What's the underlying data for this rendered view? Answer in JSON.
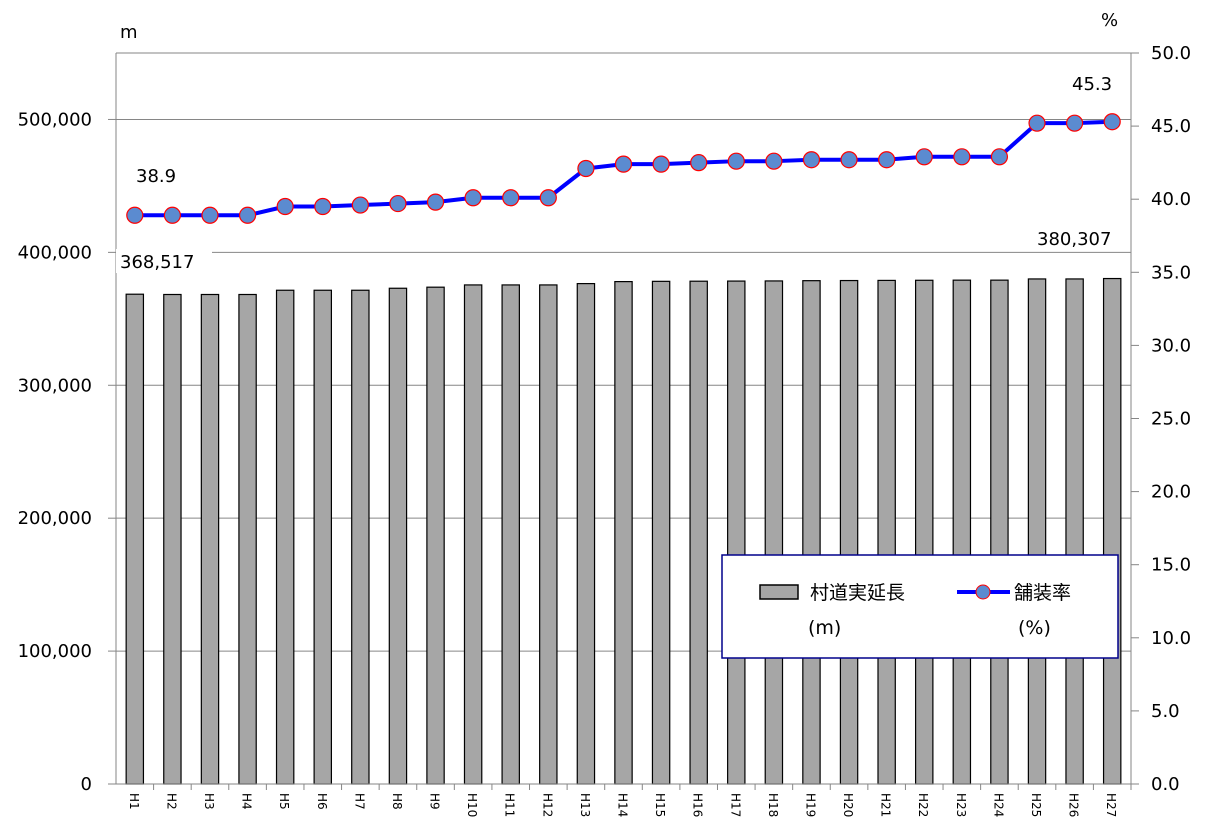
{
  "chart_data": {
    "type": "bar",
    "categories": [
      "H1",
      "H2",
      "H3",
      "H4",
      "H5",
      "H6",
      "H7",
      "H8",
      "H9",
      "H10",
      "H11",
      "H12",
      "H13",
      "H14",
      "H15",
      "H16",
      "H17",
      "H18",
      "H19",
      "H20",
      "H21",
      "H22",
      "H23",
      "H24",
      "H25",
      "H26",
      "H27"
    ],
    "series": [
      {
        "name": "村道実延長",
        "name_line2": "(m)",
        "type": "bar",
        "axis": "left",
        "color": "#a6a6a6",
        "values": [
          368517,
          368300,
          368300,
          368300,
          371500,
          371500,
          371500,
          373000,
          373800,
          375500,
          375500,
          375500,
          376500,
          378000,
          378200,
          378300,
          378400,
          378500,
          378700,
          378800,
          378900,
          379000,
          379100,
          379100,
          380000,
          380000,
          380307
        ]
      },
      {
        "name": "舗装率",
        "name_line2": "(%)",
        "type": "line",
        "axis": "right",
        "color": "#0000ff",
        "marker_color": "#5b8bd0",
        "marker_edge": "#ff0000",
        "values": [
          38.9,
          38.9,
          38.9,
          38.9,
          39.5,
          39.5,
          39.6,
          39.7,
          39.8,
          40.1,
          40.1,
          40.1,
          42.1,
          42.4,
          42.4,
          42.5,
          42.6,
          42.6,
          42.7,
          42.7,
          42.7,
          42.9,
          42.9,
          42.9,
          45.2,
          45.2,
          45.3
        ]
      }
    ],
    "y_left": {
      "unit": "m",
      "ylim": [
        0,
        550000
      ],
      "ticks": [
        "0",
        "100,000",
        "200,000",
        "300,000",
        "400,000",
        "500,000"
      ]
    },
    "y_right": {
      "unit": "%",
      "ylim": [
        0,
        50
      ],
      "ticks": [
        "0.0",
        "5.0",
        "10.0",
        "15.0",
        "20.0",
        "25.0",
        "30.0",
        "35.0",
        "40.0",
        "45.0",
        "50.0"
      ]
    },
    "data_labels": {
      "first_bar": "368,517",
      "last_bar": "380,307",
      "first_line": "38.9",
      "last_line": "45.3"
    },
    "grid": true,
    "legend_position": "bottom-right"
  }
}
